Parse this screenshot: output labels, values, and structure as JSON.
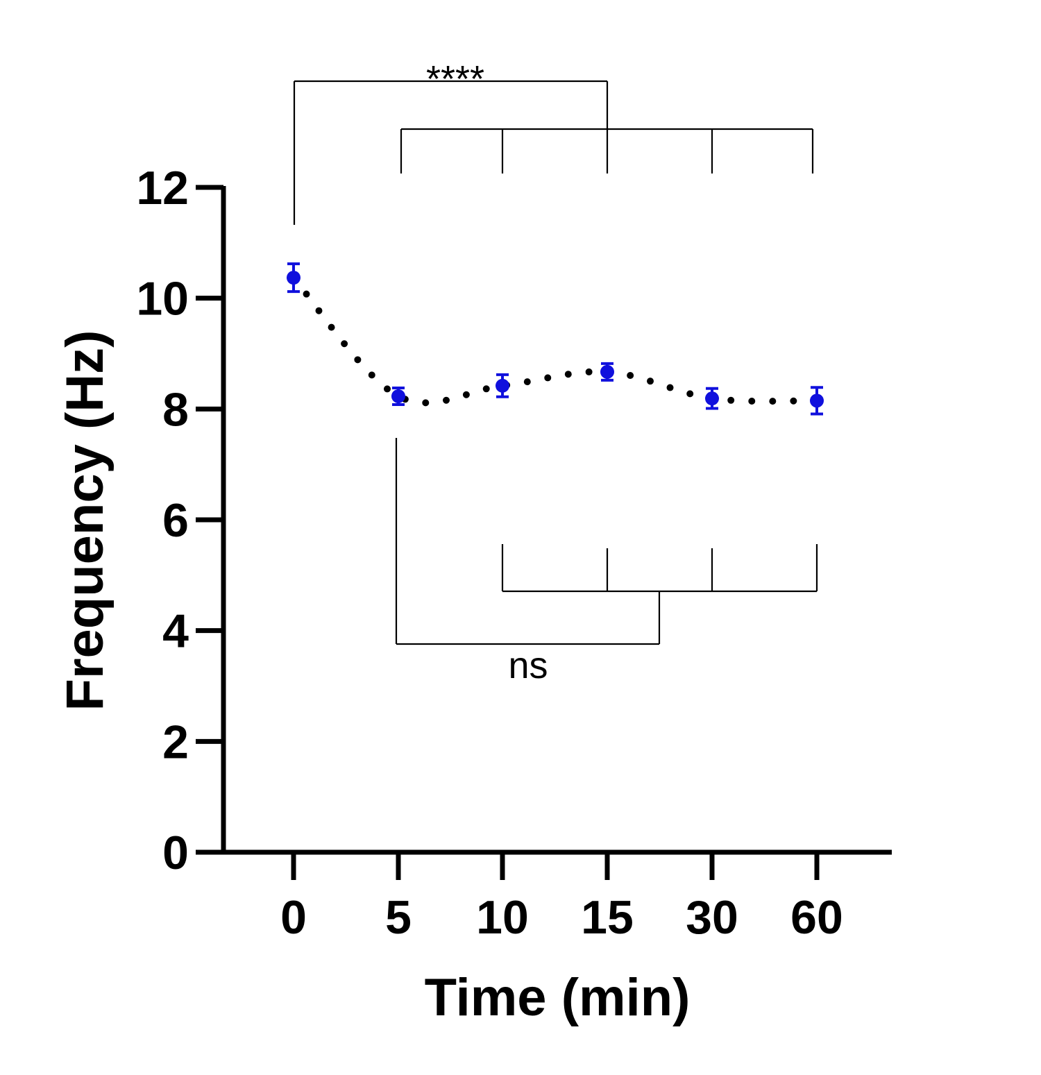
{
  "chart_data": {
    "type": "line",
    "xlabel": "Time (min)",
    "ylabel": "Frequency (Hz)",
    "ylim": [
      0,
      12
    ],
    "yticks": [
      0,
      2,
      4,
      6,
      8,
      10,
      12
    ],
    "categories": [
      "0",
      "5",
      "10",
      "15",
      "30",
      "60"
    ],
    "series": [
      {
        "values": [
          10.37,
          8.23,
          8.42,
          8.67,
          8.19,
          8.15
        ],
        "errors": [
          0.25,
          0.15,
          0.2,
          0.15,
          0.18,
          0.24
        ],
        "marker_color": "#1010dd",
        "line_color": "#000000",
        "line_style": "dotted"
      }
    ],
    "annotations": [
      {
        "label": "****",
        "group_a": [
          "0"
        ],
        "group_b": [
          "5",
          "10",
          "15",
          "30",
          "60"
        ],
        "placement": "above"
      },
      {
        "label": "ns",
        "group_a": [
          "5"
        ],
        "group_b": [
          "10",
          "15",
          "30",
          "60"
        ],
        "placement": "below"
      }
    ],
    "grid": false,
    "legend": "none"
  }
}
